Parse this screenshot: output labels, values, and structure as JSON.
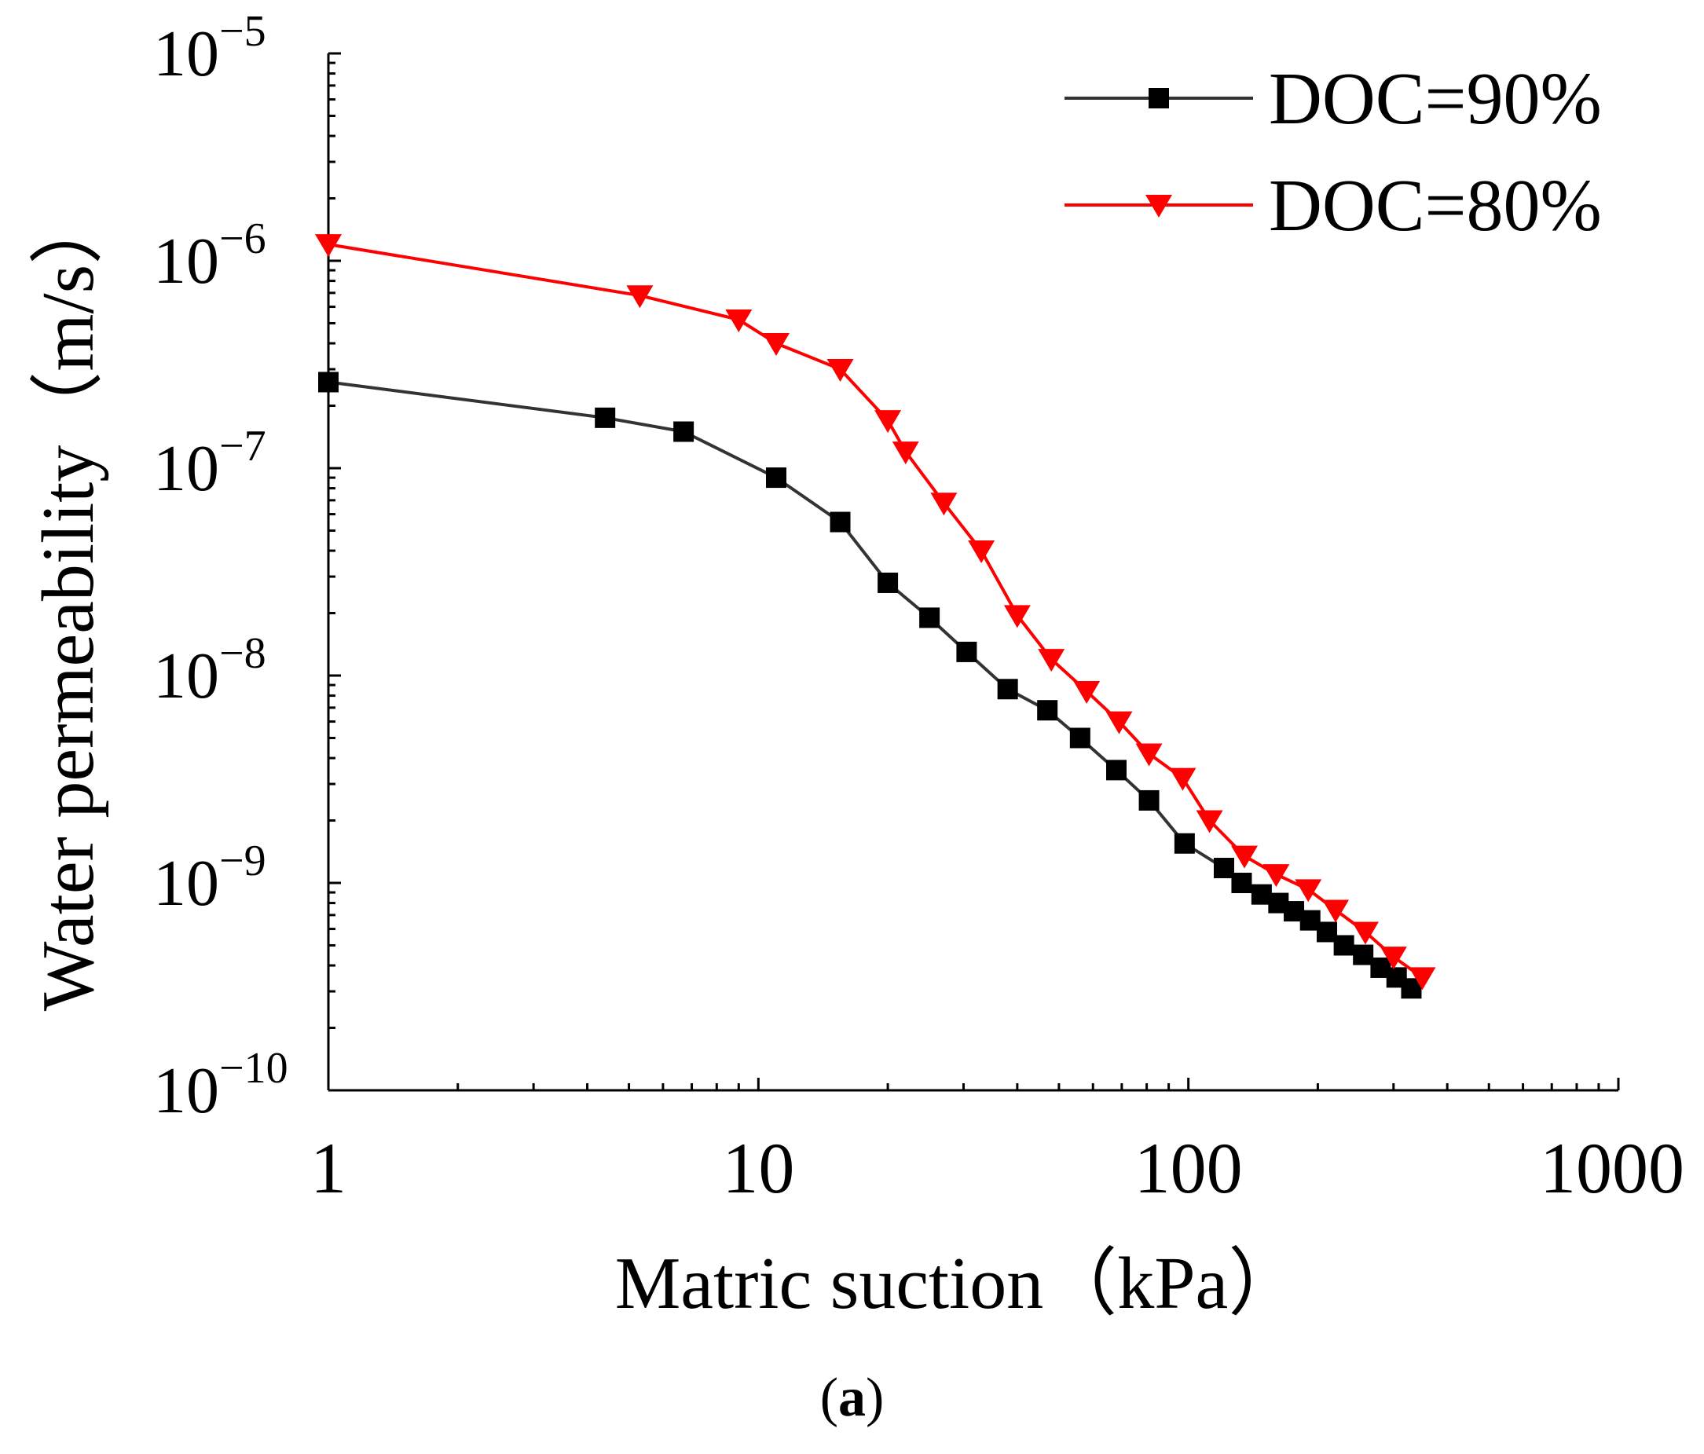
{
  "chart_data": {
    "type": "line",
    "title": "",
    "xlabel": "Matric suction（kPa）",
    "ylabel": "Water permeability（m/s）",
    "xscale": "log",
    "yscale": "log",
    "xlim": [
      1,
      1000
    ],
    "ylim": [
      1e-10,
      1e-05
    ],
    "x_ticks": [
      {
        "value": 1,
        "label": "1"
      },
      {
        "value": 10,
        "label": "10"
      },
      {
        "value": 100,
        "label": "100"
      },
      {
        "value": 1000,
        "label": "1000"
      }
    ],
    "y_ticks": [
      {
        "value": 1e-05,
        "base": "10",
        "exp": "−5"
      },
      {
        "value": 1e-06,
        "base": "10",
        "exp": "−6"
      },
      {
        "value": 1e-07,
        "base": "10",
        "exp": "−7"
      },
      {
        "value": 1e-08,
        "base": "10",
        "exp": "−8"
      },
      {
        "value": 1e-09,
        "base": "10",
        "exp": "−9"
      },
      {
        "value": 1e-10,
        "base": "10",
        "exp": "−10"
      }
    ],
    "legend_position": "top-right",
    "series": [
      {
        "name": "DOC=90%",
        "color": "#000000",
        "line_color": "#333333",
        "marker": "square",
        "x": [
          1,
          4.4,
          6.7,
          11,
          15.5,
          20,
          25,
          30.5,
          38,
          47,
          56,
          68,
          81,
          98,
          121,
          133,
          148,
          162,
          176,
          192,
          210,
          230,
          255,
          280,
          305,
          330
        ],
        "y": [
          2.6e-07,
          1.75e-07,
          1.5e-07,
          9e-08,
          5.5e-08,
          2.8e-08,
          1.9e-08,
          1.3e-08,
          8.6e-09,
          6.8e-09,
          5e-09,
          3.5e-09,
          2.5e-09,
          1.55e-09,
          1.18e-09,
          1e-09,
          8.8e-10,
          8e-10,
          7.3e-10,
          6.6e-10,
          5.8e-10,
          5e-10,
          4.5e-10,
          3.9e-10,
          3.5e-10,
          3.1e-10
        ]
      },
      {
        "name": "DOC=80%",
        "color": "#ff0000",
        "line_color": "#ff0000",
        "marker": "triangle-down",
        "x": [
          1,
          5.3,
          9,
          11,
          15.5,
          20,
          22,
          27,
          33,
          40,
          48,
          58,
          69,
          81,
          97,
          112,
          135,
          160,
          190,
          220,
          258,
          300,
          350
        ],
        "y": [
          1.2e-06,
          6.8e-07,
          5.2e-07,
          4e-07,
          3e-07,
          1.7e-07,
          1.2e-07,
          6.8e-08,
          4e-08,
          1.95e-08,
          1.2e-08,
          8.4e-09,
          6e-09,
          4.2e-09,
          3.2e-09,
          2e-09,
          1.35e-09,
          1.1e-09,
          9.3e-10,
          7.4e-10,
          5.8e-10,
          4.4e-10,
          3.5e-10
        ]
      }
    ]
  },
  "caption": {
    "open": "(",
    "letter": "a",
    "close": ")"
  }
}
